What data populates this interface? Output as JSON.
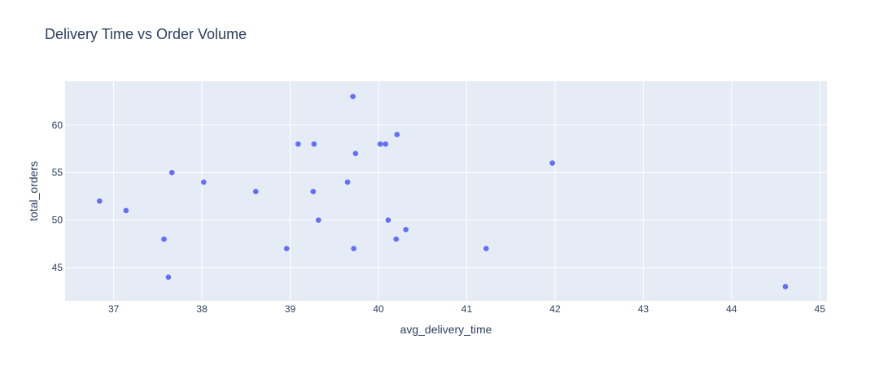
{
  "chart_data": {
    "type": "scatter",
    "title": "Delivery Time vs Order Volume",
    "xlabel": "avg_delivery_time",
    "ylabel": "total_orders",
    "xlim": [
      36.45,
      45.08
    ],
    "ylim": [
      41.5,
      64.6
    ],
    "xticks": [
      37,
      38,
      39,
      40,
      41,
      42,
      43,
      44,
      45
    ],
    "yticks": [
      45,
      50,
      55,
      60
    ],
    "grid": true,
    "colors": {
      "background": "#ffffff",
      "plot_background": "#e5ecf6",
      "grid": "#ffffff",
      "marker": "#636efa",
      "text": "#2a3f5f"
    },
    "points": [
      {
        "x": 36.84,
        "y": 52
      },
      {
        "x": 37.14,
        "y": 51
      },
      {
        "x": 37.57,
        "y": 48
      },
      {
        "x": 37.62,
        "y": 44
      },
      {
        "x": 37.66,
        "y": 55
      },
      {
        "x": 38.02,
        "y": 54
      },
      {
        "x": 38.61,
        "y": 53
      },
      {
        "x": 38.96,
        "y": 47
      },
      {
        "x": 39.09,
        "y": 58
      },
      {
        "x": 39.26,
        "y": 53
      },
      {
        "x": 39.27,
        "y": 58
      },
      {
        "x": 39.32,
        "y": 50
      },
      {
        "x": 39.65,
        "y": 54
      },
      {
        "x": 39.71,
        "y": 63
      },
      {
        "x": 39.72,
        "y": 47
      },
      {
        "x": 39.74,
        "y": 57
      },
      {
        "x": 40.02,
        "y": 58
      },
      {
        "x": 40.08,
        "y": 58
      },
      {
        "x": 40.11,
        "y": 50
      },
      {
        "x": 40.2,
        "y": 48
      },
      {
        "x": 40.21,
        "y": 59
      },
      {
        "x": 40.31,
        "y": 49
      },
      {
        "x": 41.22,
        "y": 47
      },
      {
        "x": 41.97,
        "y": 56
      },
      {
        "x": 44.61,
        "y": 43
      }
    ]
  }
}
